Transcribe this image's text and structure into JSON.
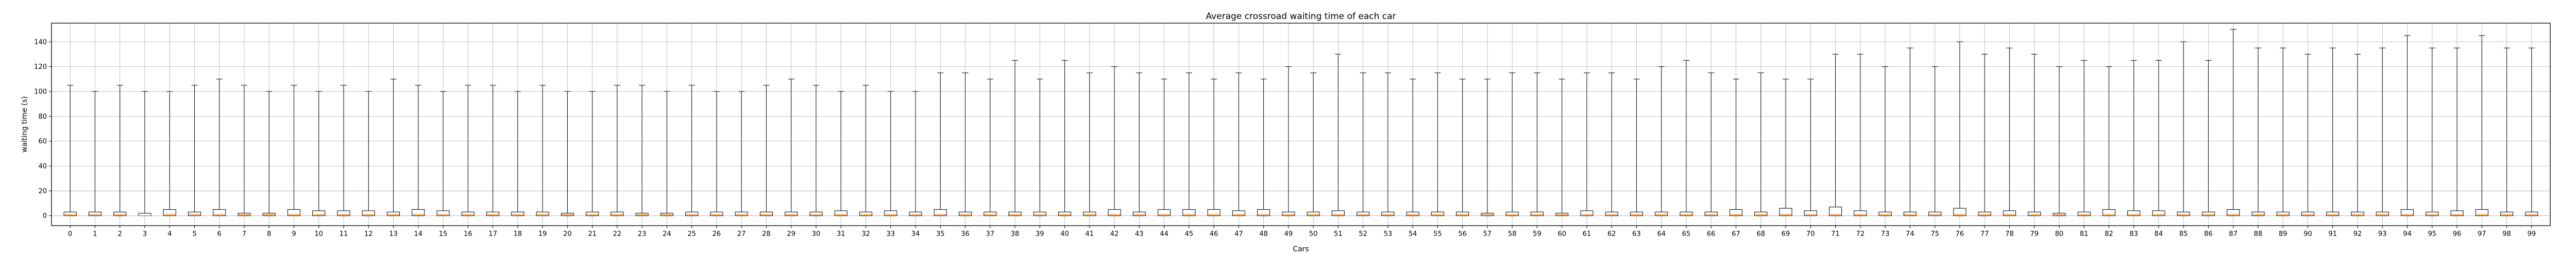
{
  "chart_data": {
    "type": "boxplot",
    "title": "Average crossroad waiting time of each car",
    "xlabel": "Cars",
    "ylabel": "waiting time (s)",
    "ylim": [
      -8,
      155
    ],
    "yticks": [
      0,
      20,
      40,
      60,
      80,
      100,
      120,
      140
    ],
    "grid": true,
    "colors": {
      "box": "#000000",
      "median": "#ff7f0e",
      "grid": "#b0b0b0",
      "frame": "#000000"
    },
    "categories": [
      "0",
      "1",
      "2",
      "3",
      "4",
      "5",
      "6",
      "7",
      "8",
      "9",
      "10",
      "11",
      "12",
      "13",
      "14",
      "15",
      "16",
      "17",
      "18",
      "19",
      "20",
      "21",
      "22",
      "23",
      "24",
      "25",
      "26",
      "27",
      "28",
      "29",
      "30",
      "31",
      "32",
      "33",
      "34",
      "35",
      "36",
      "37",
      "38",
      "39",
      "40",
      "41",
      "42",
      "43",
      "44",
      "45",
      "46",
      "47",
      "48",
      "49",
      "50",
      "51",
      "52",
      "53",
      "54",
      "55",
      "56",
      "57",
      "58",
      "59",
      "60",
      "61",
      "62",
      "63",
      "64",
      "65",
      "66",
      "67",
      "68",
      "69",
      "70",
      "71",
      "72",
      "73",
      "74",
      "75",
      "76",
      "77",
      "78",
      "79",
      "80",
      "81",
      "82",
      "83",
      "84",
      "85",
      "86",
      "87",
      "88",
      "89",
      "90",
      "91",
      "92",
      "93",
      "94",
      "95",
      "96",
      "97",
      "98",
      "99"
    ],
    "whisker_max": [
      105,
      100,
      105,
      100,
      100,
      105,
      110,
      105,
      100,
      105,
      100,
      105,
      100,
      110,
      105,
      100,
      105,
      105,
      100,
      105,
      100,
      100,
      105,
      105,
      100,
      105,
      100,
      100,
      105,
      110,
      105,
      100,
      105,
      100,
      100,
      115,
      115,
      110,
      125,
      110,
      125,
      115,
      120,
      115,
      110,
      115,
      110,
      115,
      110,
      120,
      115,
      130,
      115,
      115,
      110,
      115,
      110,
      110,
      115,
      115,
      110,
      115,
      115,
      110,
      120,
      125,
      115,
      110,
      115,
      110,
      110,
      130,
      130,
      120,
      135,
      120,
      140,
      130,
      135,
      130,
      120,
      125,
      120,
      125,
      125,
      140,
      125,
      150,
      135,
      135,
      130,
      135,
      130,
      135,
      145,
      135,
      135,
      145,
      135,
      135
    ],
    "q3": [
      3,
      3,
      3,
      2,
      5,
      3,
      5,
      2,
      2,
      5,
      4,
      4,
      4,
      3,
      5,
      4,
      3,
      3,
      3,
      3,
      2,
      3,
      3,
      2,
      2,
      3,
      3,
      3,
      3,
      3,
      3,
      4,
      3,
      4,
      3,
      5,
      3,
      3,
      3,
      3,
      3,
      3,
      5,
      3,
      5,
      5,
      5,
      4,
      5,
      3,
      3,
      4,
      3,
      3,
      3,
      3,
      3,
      2,
      3,
      3,
      2,
      4,
      3,
      3,
      3,
      3,
      3,
      5,
      3,
      6,
      4,
      7,
      4,
      3,
      3,
      3,
      6,
      3,
      4,
      3,
      2,
      3,
      5,
      4,
      4,
      3,
      3,
      5,
      3,
      3,
      3,
      3,
      3,
      3,
      5,
      3,
      4,
      5,
      3,
      3
    ],
    "median": [
      1,
      1,
      1,
      0,
      1,
      1,
      1,
      1,
      1,
      1,
      1,
      1,
      1,
      1,
      1,
      1,
      1,
      1,
      1,
      1,
      1,
      1,
      1,
      1,
      1,
      1,
      1,
      1,
      1,
      1,
      1,
      1,
      1,
      1,
      1,
      1,
      1,
      1,
      1,
      1,
      1,
      1,
      1,
      1,
      1,
      1,
      1,
      1,
      1,
      1,
      1,
      1,
      1,
      1,
      1,
      1,
      1,
      1,
      1,
      1,
      1,
      1,
      1,
      1,
      1,
      1,
      1,
      1,
      1,
      1,
      1,
      1,
      1,
      1,
      1,
      1,
      1,
      1,
      1,
      1,
      1,
      1,
      1,
      1,
      1,
      1,
      1,
      1,
      1,
      1,
      1,
      1,
      1,
      1,
      1,
      1,
      1,
      1,
      1,
      1
    ],
    "q1": [
      0,
      0,
      0,
      0,
      0,
      0,
      0,
      0,
      0,
      0,
      0,
      0,
      0,
      0,
      0,
      0,
      0,
      0,
      0,
      0,
      0,
      0,
      0,
      0,
      0,
      0,
      0,
      0,
      0,
      0,
      0,
      0,
      0,
      0,
      0,
      0,
      0,
      0,
      0,
      0,
      0,
      0,
      0,
      0,
      0,
      0,
      0,
      0,
      0,
      0,
      0,
      0,
      0,
      0,
      0,
      0,
      0,
      0,
      0,
      0,
      0,
      0,
      0,
      0,
      0,
      0,
      0,
      0,
      0,
      0,
      0,
      0,
      0,
      0,
      0,
      0,
      0,
      0,
      0,
      0,
      0,
      0,
      0,
      0,
      0,
      0,
      0,
      0,
      0,
      0,
      0,
      0,
      0,
      0,
      0,
      0,
      0,
      0,
      0,
      0
    ],
    "whisker_min": [
      0,
      0,
      0,
      0,
      0,
      0,
      0,
      0,
      0,
      0,
      0,
      0,
      0,
      0,
      0,
      0,
      0,
      0,
      0,
      0,
      0,
      0,
      0,
      0,
      0,
      0,
      0,
      0,
      0,
      0,
      0,
      0,
      0,
      0,
      0,
      0,
      0,
      0,
      0,
      0,
      0,
      0,
      0,
      0,
      0,
      0,
      0,
      0,
      0,
      0,
      0,
      0,
      0,
      0,
      0,
      0,
      0,
      0,
      0,
      0,
      0,
      0,
      0,
      0,
      0,
      0,
      0,
      0,
      0,
      0,
      0,
      0,
      0,
      0,
      0,
      0,
      0,
      0,
      0,
      0,
      0,
      0,
      0,
      0,
      0,
      0,
      0,
      0,
      0,
      0,
      0,
      0,
      0,
      0,
      0,
      0,
      0,
      0,
      0,
      0
    ]
  }
}
